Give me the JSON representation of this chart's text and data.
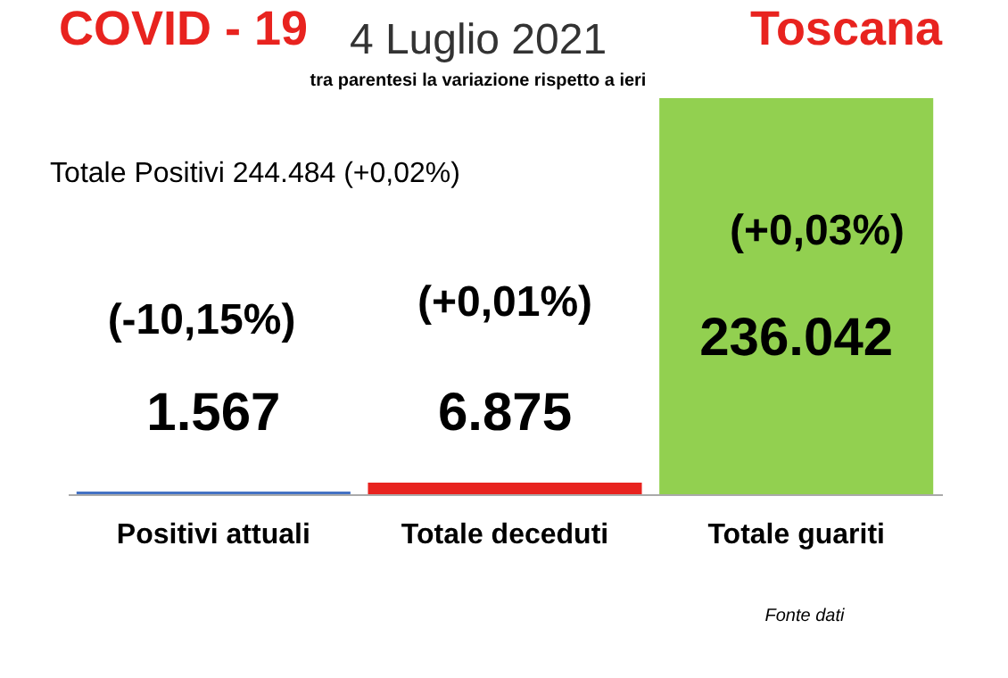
{
  "chart_data": {
    "type": "bar",
    "title": "4 Luglio 2021",
    "subtitle": "tra parentesi la variazione rispetto a ieri",
    "categories": [
      "Positivi attuali",
      "Totale deceduti",
      "Totale guariti"
    ],
    "values": [
      1567,
      6875,
      236042
    ],
    "colors": [
      "#4472c4",
      "#e8231f",
      "#92d050"
    ],
    "value_labels": [
      "1.567",
      "6.875",
      "236.042"
    ],
    "annotations": [
      "COVID - 19",
      "Toscana",
      "Totale Positivi 244.484 (+0,02%)",
      "(-10,15%)",
      "(+0,01%)",
      "(+0,03%)",
      "Fonte dati"
    ],
    "grid": false
  }
}
